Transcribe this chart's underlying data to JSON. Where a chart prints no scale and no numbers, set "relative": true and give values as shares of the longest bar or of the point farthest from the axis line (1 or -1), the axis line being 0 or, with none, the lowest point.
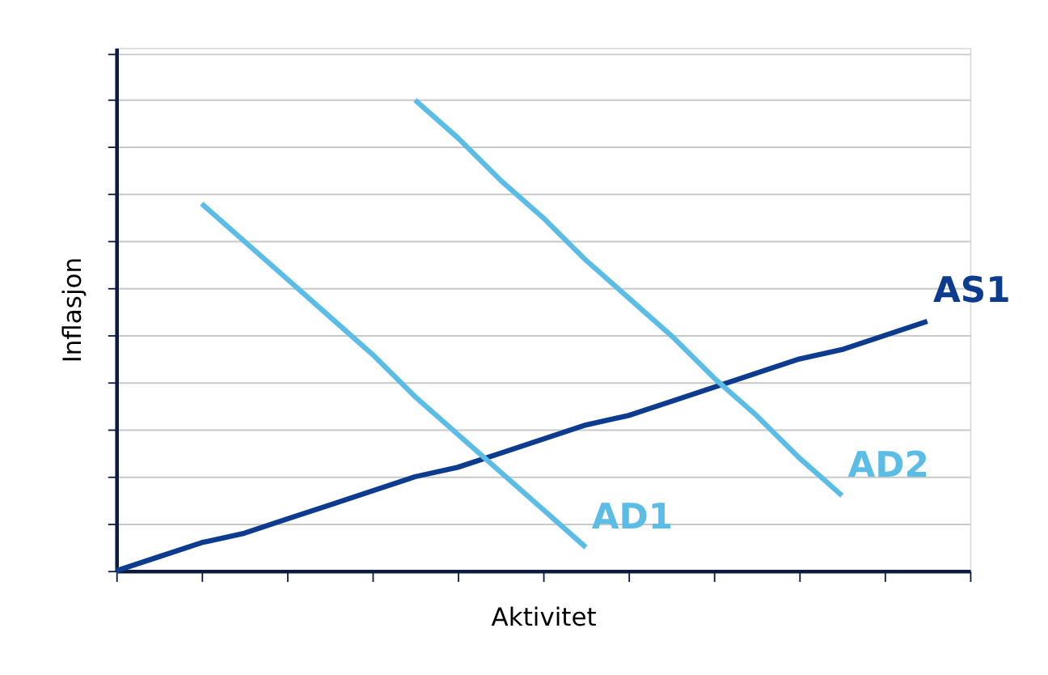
{
  "chart_data": {
    "type": "line",
    "relative": true,
    "xlabel": "Aktivitet",
    "ylabel": "Inflasjon",
    "categories": [
      null,
      null,
      null,
      null,
      null,
      null,
      null,
      null,
      null,
      null,
      null,
      null,
      null,
      null,
      null,
      null,
      null,
      null,
      null,
      null,
      null
    ],
    "tick_labels": false,
    "grid": "y",
    "legend": false,
    "marker": "none",
    "line_style": "solid",
    "series": [
      {
        "name": "AS1",
        "color": "#0d3b8e",
        "values": [
          0,
          0.03,
          0.06,
          0.08,
          0.11,
          0.14,
          0.17,
          0.2,
          0.22,
          0.25,
          0.28,
          0.31,
          0.33,
          0.36,
          0.39,
          0.42,
          0.45,
          0.47,
          0.5,
          0.53,
          null
        ]
      },
      {
        "name": "AD1",
        "color": "#5bbde6",
        "values": [
          null,
          null,
          0.78,
          0.7,
          0.62,
          0.54,
          0.46,
          0.37,
          0.29,
          0.21,
          0.13,
          0.05,
          null,
          null,
          null,
          null,
          null,
          null,
          null,
          null,
          null
        ]
      },
      {
        "name": "AD2",
        "color": "#5bbde6",
        "values": [
          null,
          null,
          null,
          null,
          null,
          null,
          null,
          1.0,
          0.92,
          0.83,
          0.75,
          0.66,
          0.58,
          0.5,
          0.41,
          0.33,
          0.24,
          0.16,
          null,
          null,
          null
        ]
      }
    ]
  }
}
